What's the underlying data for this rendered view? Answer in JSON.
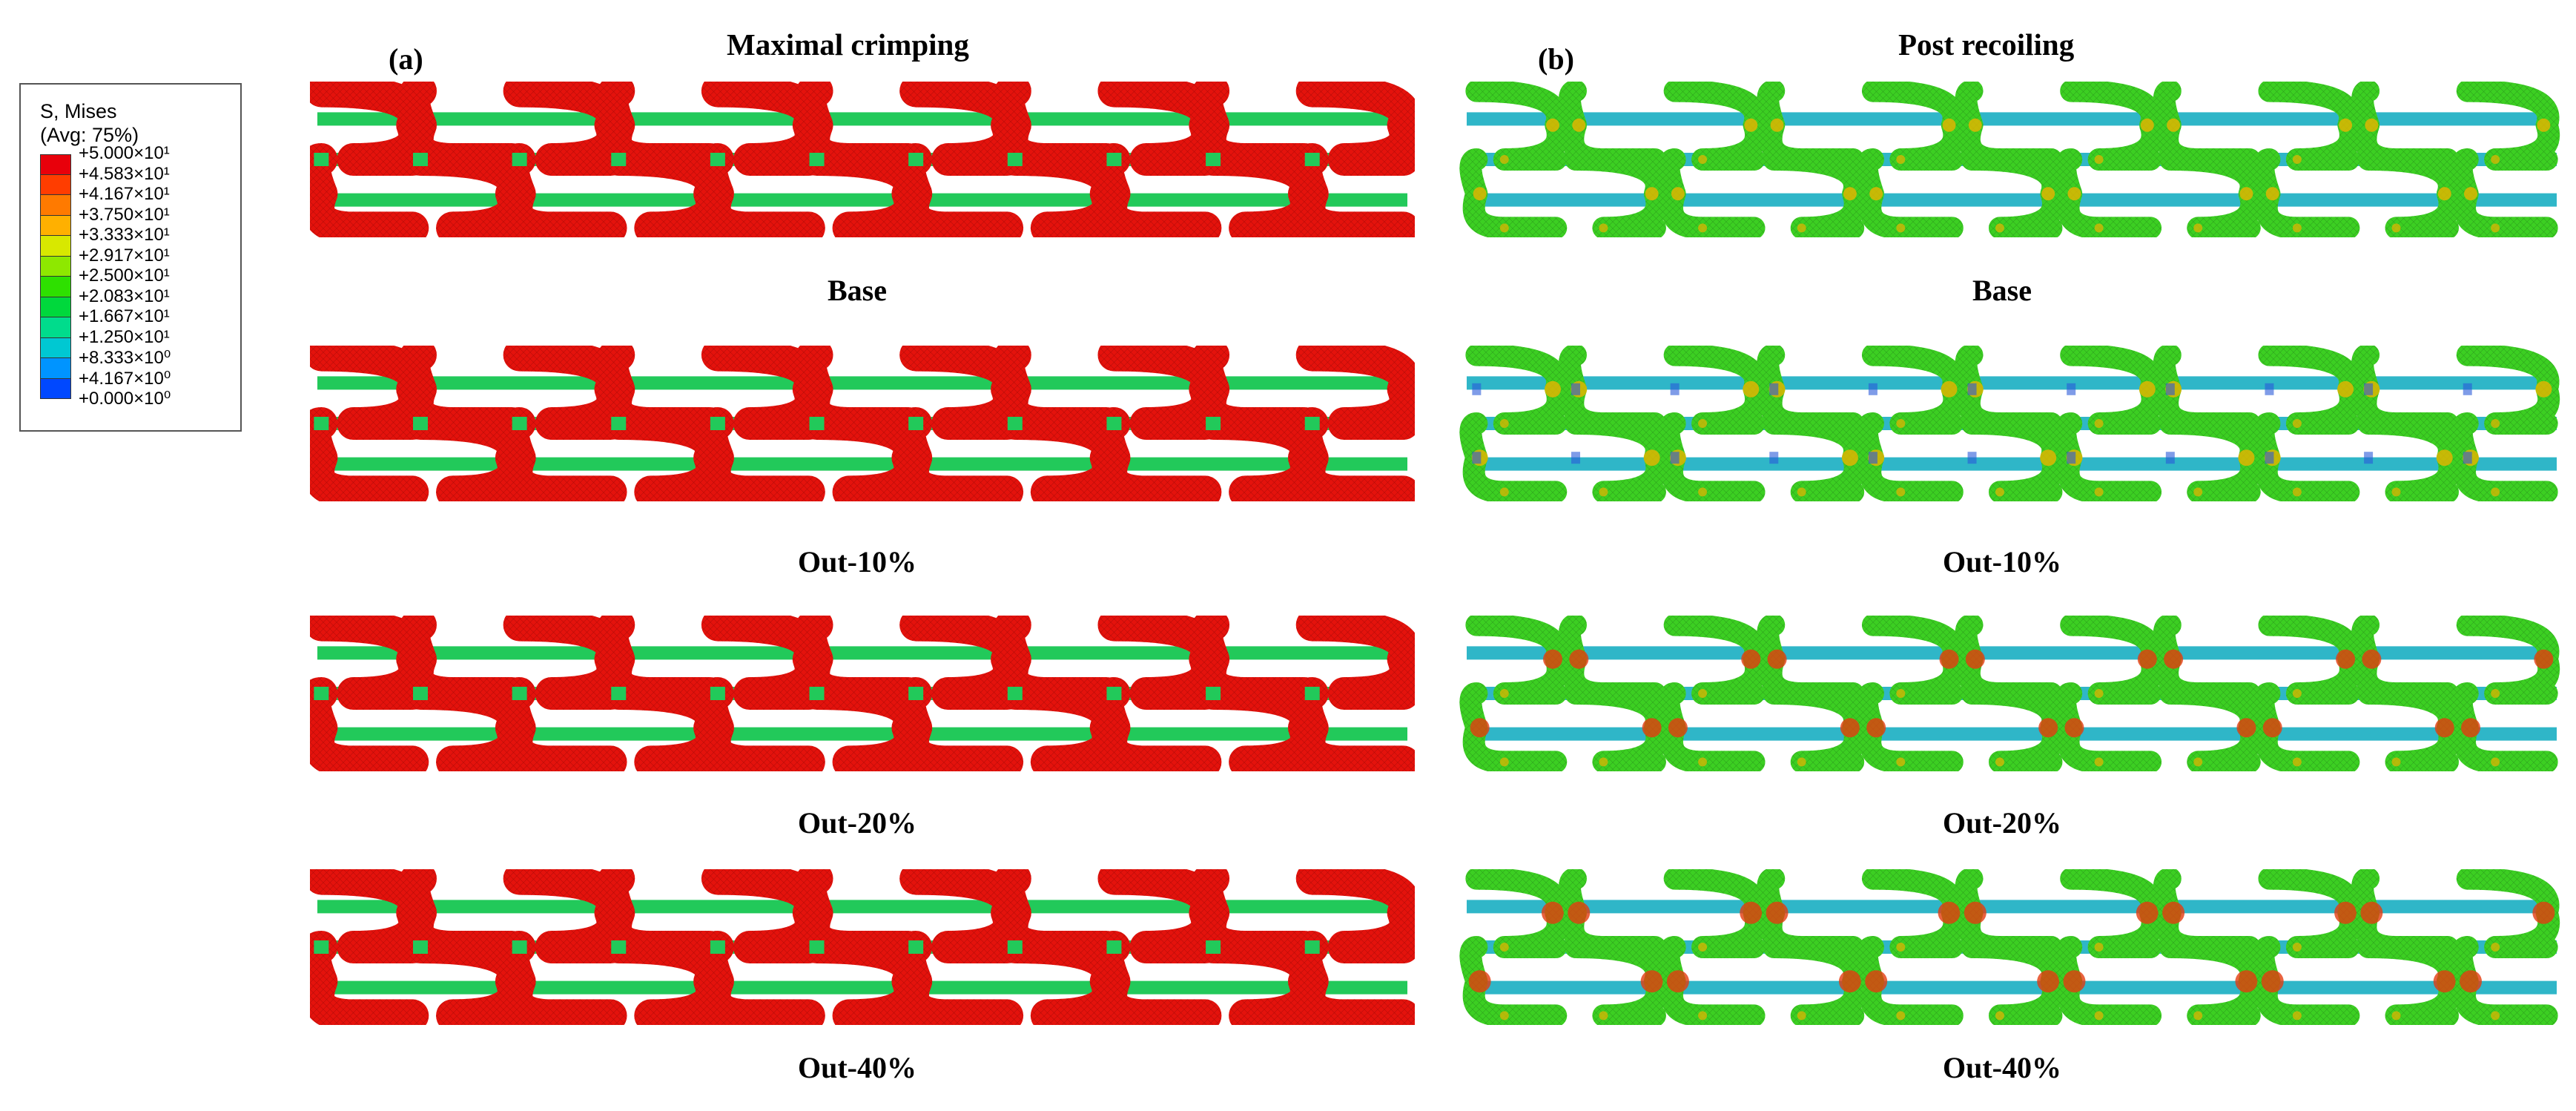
{
  "legend": {
    "title_line1": "S, Mises",
    "title_line2": "(Avg: 75%)",
    "labels": [
      "+5.000×10¹",
      "+4.583×10¹",
      "+4.167×10¹",
      "+3.750×10¹",
      "+3.333×10¹",
      "+2.917×10¹",
      "+2.500×10¹",
      "+2.083×10¹",
      "+1.667×10¹",
      "+1.250×10¹",
      "+8.333×10⁰",
      "+4.167×10⁰",
      "+0.000×10⁰"
    ],
    "colors": [
      "#e8000b",
      "#ff3d00",
      "#ff7a00",
      "#ffb000",
      "#d8e800",
      "#8ee800",
      "#2ee000",
      "#00d83c",
      "#00dc8c",
      "#00c8d2",
      "#0094ff",
      "#0048ff",
      "#0000f0"
    ]
  },
  "panels": {
    "a": {
      "tag": "(a)",
      "heading": "Maximal crimping"
    },
    "b": {
      "tag": "(b)",
      "heading": "Post recoiling"
    }
  },
  "rows": [
    {
      "caption_a": "Base",
      "caption_b": "Base"
    },
    {
      "caption_a": "Out-10%",
      "caption_b": "Out-10%"
    },
    {
      "caption_a": "Out-20%",
      "caption_b": "Out-20%"
    },
    {
      "caption_a": "Out-40%",
      "caption_b": "Out-40%"
    }
  ],
  "colors": {
    "crimp_body": "#e4120c",
    "crimp_connector": "#22c95a",
    "crimp_mesh": "#5a0000",
    "recoil_body": "#3ccf22",
    "recoil_connector": "#2fb6c8",
    "recoil_hot": "#e8b400",
    "recoil_red": "#e33c10",
    "recoil_blue": "#2a5ad8",
    "recoil_mesh": "#0f4d10"
  }
}
